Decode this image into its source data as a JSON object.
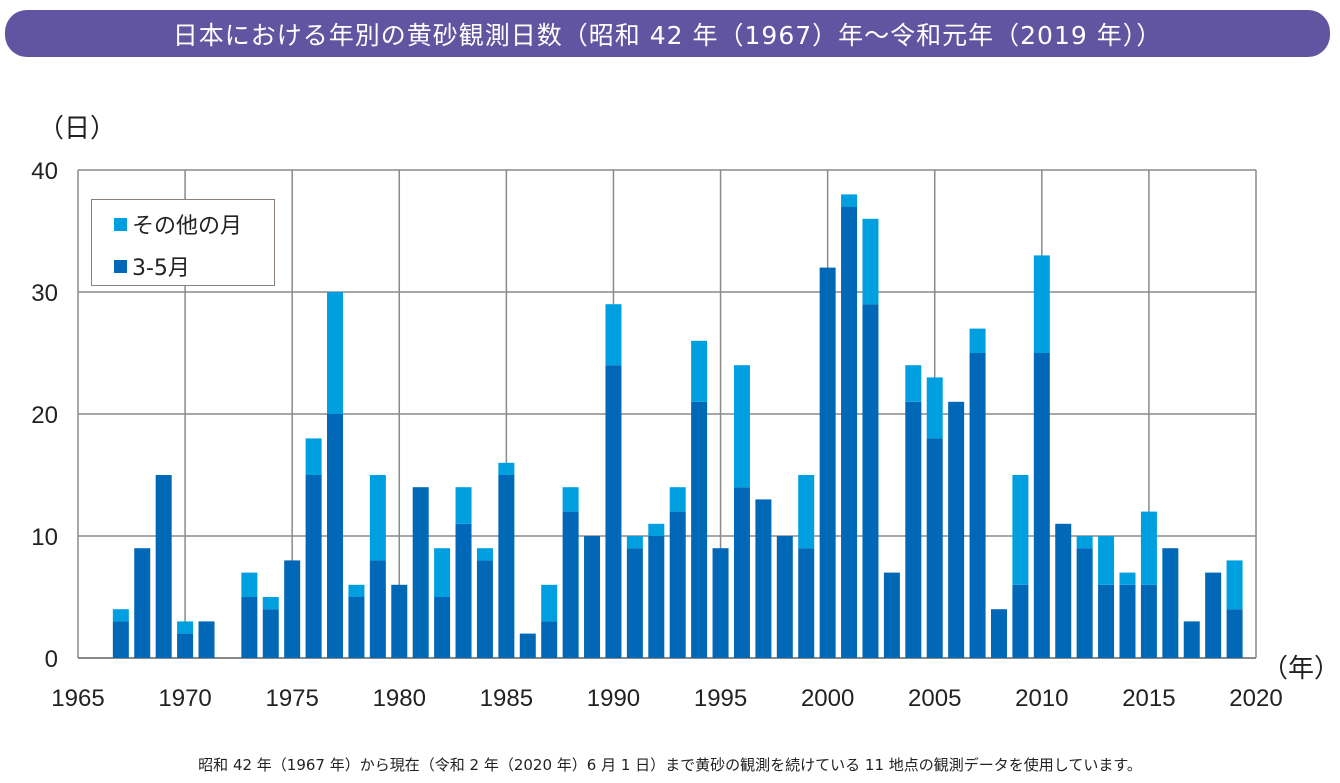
{
  "title": "日本における年別の黄砂観測日数（昭和 42 年（1967）年～令和元年（2019 年））",
  "footnote": "昭和 42 年（1967 年）から現在（令和 2 年（2020 年）6 月 1 日）まで黄砂の観測を続けている 11 地点の観測データを使用しています。",
  "colors": {
    "banner": "#6155a2",
    "spring": "#0068b7",
    "other": "#00a0e0",
    "grid": "#8a8a8a"
  },
  "chart_data": {
    "type": "bar",
    "stacked": true,
    "title": "日本における年別の黄砂観測日数（昭和 42 年（1967）年～令和元年（2019 年））",
    "ylabel": "（日）",
    "xlabel": "（年）",
    "xlim": [
      1965,
      2020
    ],
    "ylim": [
      0,
      40
    ],
    "xticks": [
      1965,
      1970,
      1975,
      1980,
      1985,
      1990,
      1995,
      2000,
      2005,
      2010,
      2015,
      2020
    ],
    "yticks": [
      0,
      10,
      20,
      30,
      40
    ],
    "grid": true,
    "legend_position": "top-left",
    "legend": [
      "その他の月",
      "3-5月"
    ],
    "categories": [
      1967,
      1968,
      1969,
      1970,
      1971,
      1972,
      1973,
      1974,
      1975,
      1976,
      1977,
      1978,
      1979,
      1980,
      1981,
      1982,
      1983,
      1984,
      1985,
      1986,
      1987,
      1988,
      1989,
      1990,
      1991,
      1992,
      1993,
      1994,
      1995,
      1996,
      1997,
      1998,
      1999,
      2000,
      2001,
      2002,
      2003,
      2004,
      2005,
      2006,
      2007,
      2008,
      2009,
      2010,
      2011,
      2012,
      2013,
      2014,
      2015,
      2016,
      2017,
      2018,
      2019
    ],
    "series": [
      {
        "name": "3-5月",
        "color": "#0068b7",
        "values": [
          3,
          9,
          15,
          2,
          3,
          0,
          5,
          4,
          8,
          15,
          20,
          5,
          8,
          6,
          14,
          5,
          11,
          8,
          15,
          2,
          3,
          12,
          10,
          24,
          9,
          10,
          12,
          21,
          9,
          14,
          13,
          10,
          9,
          32,
          37,
          29,
          7,
          21,
          18,
          21,
          25,
          4,
          6,
          25,
          11,
          9,
          6,
          6,
          6,
          9,
          3,
          7,
          4
        ]
      },
      {
        "name": "その他の月",
        "color": "#00a0e0",
        "values": [
          1,
          0,
          0,
          1,
          0,
          0,
          2,
          1,
          0,
          3,
          10,
          1,
          7,
          0,
          0,
          4,
          3,
          1,
          1,
          0,
          3,
          2,
          0,
          5,
          1,
          1,
          2,
          5,
          0,
          10,
          0,
          0,
          6,
          0,
          1,
          7,
          0,
          3,
          5,
          0,
          2,
          0,
          9,
          8,
          0,
          1,
          4,
          1,
          6,
          0,
          0,
          0,
          4
        ]
      }
    ]
  }
}
